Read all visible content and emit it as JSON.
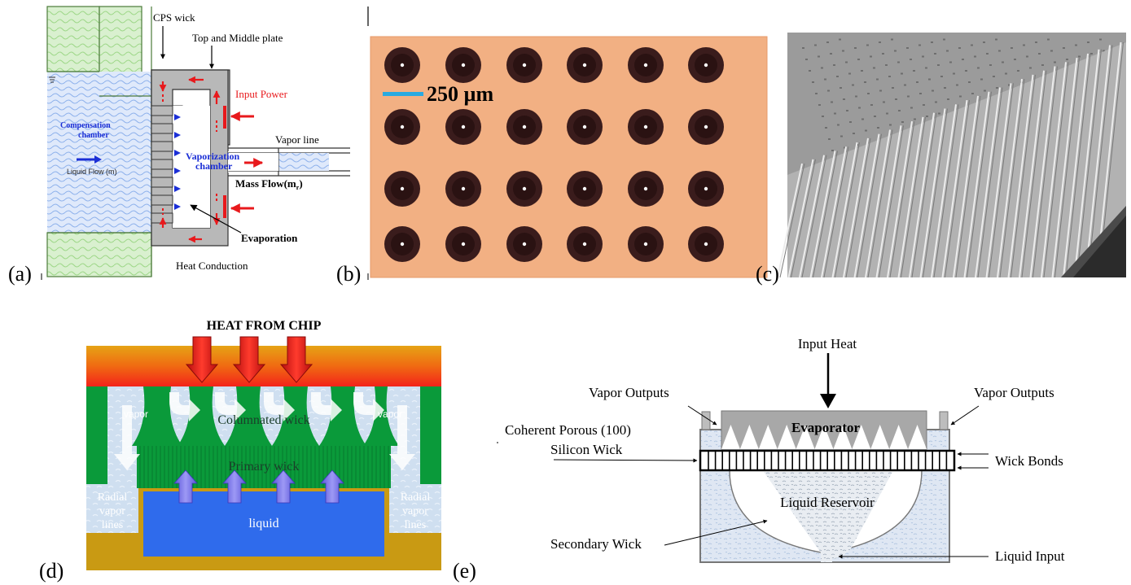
{
  "panels": {
    "a": {
      "tag": "(a)",
      "cps_wick": "CPS wick",
      "top_middle_plate": "Top and Middle plate",
      "input_power": "Input Power",
      "compensation_line1": "Compensation",
      "compensation_line2": "chamber",
      "liquid_flow": "Liquid Flow (m)",
      "vaporization_line1": "Vaporization",
      "vaporization_line2": "chamber",
      "vapor_line": "Vapor line",
      "mass_flow": "Mass Flow(m",
      "mass_flow_sub": "r",
      "mass_flow_close": ")",
      "evaporation": "Evaporation",
      "heat_conduction": "Heat Conduction"
    },
    "b": {
      "tag": "(b)",
      "scale_bar": "250 µm"
    },
    "c": {
      "tag": "(c)"
    },
    "d": {
      "tag": "(d)",
      "heat_from_chip": "HEAT FROM CHIP",
      "columnated_wick": "Columnated wick",
      "primary_wick": "Primary wick",
      "vapor_left": "vapor",
      "vapor_right": "vapor",
      "radial_line1": "Radial",
      "radial_line2": "vapor",
      "radial_line3": "lines",
      "liquid": "liquid"
    },
    "e": {
      "tag": "(e)",
      "input_heat": "Input Heat",
      "vapor_outputs_left": "Vapor Outputs",
      "vapor_outputs_right": "Vapor Outputs",
      "evaporator": "Evaporator",
      "coherent_line1": "Coherent Porous (100)",
      "coherent_line2": "Silicon Wick",
      "wick_bonds": "Wick Bonds",
      "liquid_reservoir": "Liquid Reservoir",
      "secondary_wick": "Secondary Wick",
      "liquid_input": "Liquid Input"
    }
  },
  "colors": {
    "orange_bg": "#f2b083",
    "dark_dot": "#3a1c1c",
    "scale_bar": "#29aae1",
    "green": "#0a9a3a",
    "light_blue": "#d7e6f3",
    "liquid_blue": "#2f6bec",
    "gold": "#c99a13",
    "heat_red": "#e8191c",
    "arrow_red": "#e8191c",
    "arrow_blue": "#1b2fd6",
    "gray_plate": "#b8b8b8",
    "evaporator_gray": "#a8a8a8"
  }
}
